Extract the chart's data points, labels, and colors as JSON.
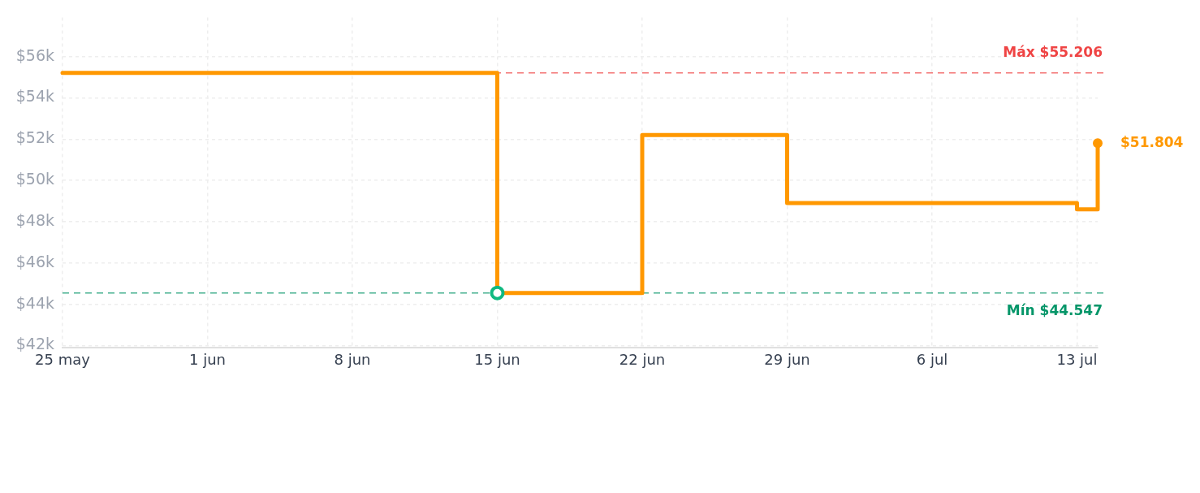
{
  "chart_data": {
    "type": "step",
    "series": [
      {
        "color": "#ff9800",
        "marker": "none",
        "x": [
          "--05-25",
          "--06-15",
          "--06-22",
          "--06-29",
          "--07-13",
          "--07-14"
        ],
        "values": [
          55206,
          44547,
          52200,
          48900,
          48600,
          51804
        ]
      },
      {
        "type": "scatter",
        "color": "#10b981",
        "marker": "circle",
        "x": [
          "--06-15"
        ],
        "values": [
          44547
        ]
      },
      {
        "type": "scatter",
        "color": "#ff9800",
        "marker": "circle",
        "x": [
          "--07-14"
        ],
        "values": [
          51804
        ],
        "value_labels": [
          "$51.804"
        ]
      }
    ],
    "xlim": [
      "--05-25",
      "--07-14"
    ],
    "xticks": [
      {
        "value": "--05-25",
        "label": "25 may"
      },
      {
        "value": "--06-01",
        "label": "1 jun"
      },
      {
        "value": "--06-08",
        "label": "8 jun"
      },
      {
        "value": "--06-15",
        "label": "15 jun"
      },
      {
        "value": "--06-22",
        "label": "22 jun"
      },
      {
        "value": "--06-29",
        "label": "29 jun"
      },
      {
        "value": "--07-06",
        "label": "6 jul"
      },
      {
        "value": "--07-13",
        "label": "13 jul"
      }
    ],
    "ylim": [
      41900,
      57900
    ],
    "yticks": [
      {
        "value": 42000,
        "label": "$42k"
      },
      {
        "value": 44000,
        "label": "$44k"
      },
      {
        "value": 46000,
        "label": "$46k"
      },
      {
        "value": 48000,
        "label": "$48k"
      },
      {
        "value": 50000,
        "label": "$50k"
      },
      {
        "value": 52000,
        "label": "$52k"
      },
      {
        "value": 54000,
        "label": "$54k"
      },
      {
        "value": 56000,
        "label": "$56k"
      }
    ],
    "ref_lines": [
      {
        "axis": "y",
        "value": 55206,
        "label": "Máx $55.206",
        "color": "#ef4444",
        "line_style": "dashed"
      },
      {
        "axis": "y",
        "value": 44547,
        "label": "Mín $44.547",
        "color": "#059669",
        "line_style": "dashed"
      }
    ],
    "grid": true,
    "legend": false
  }
}
